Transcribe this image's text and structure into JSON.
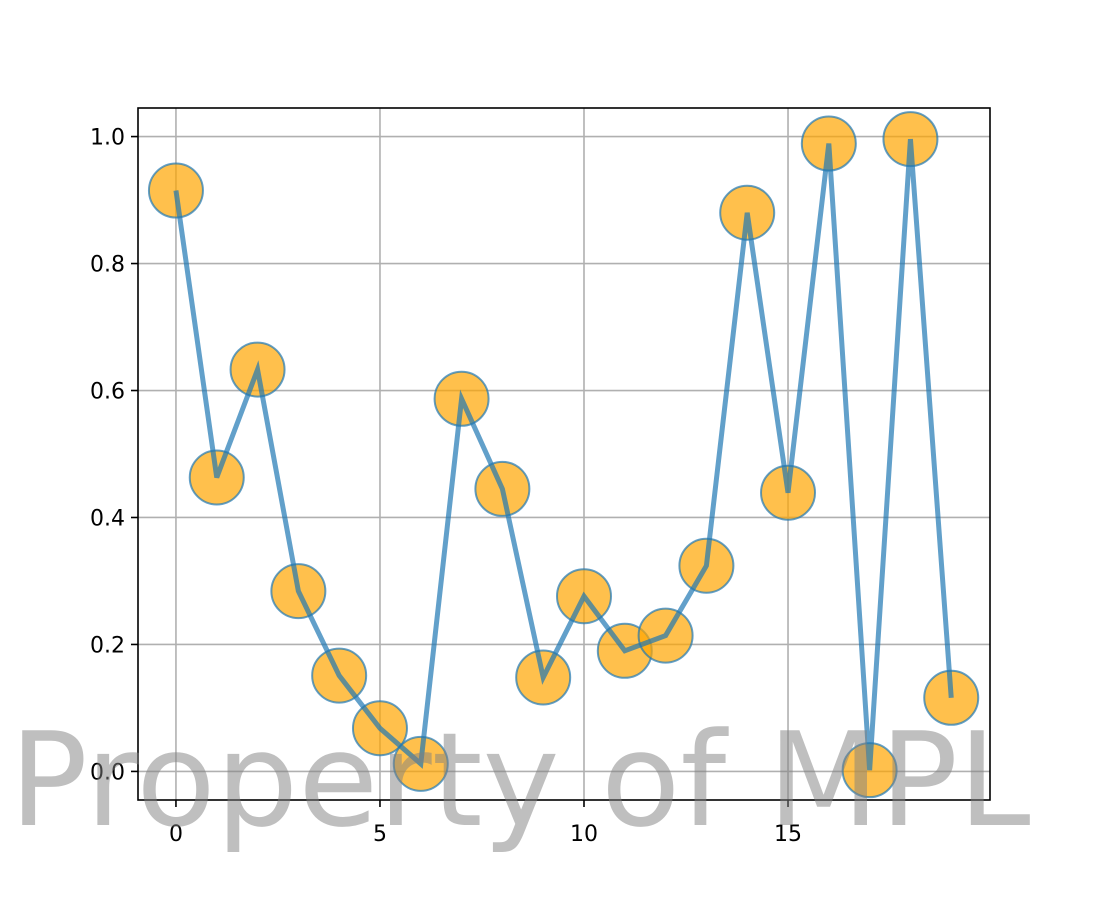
{
  "chart_data": {
    "type": "line",
    "title": "",
    "xlabel": "",
    "ylabel": "",
    "x": [
      0,
      1,
      2,
      3,
      4,
      5,
      6,
      7,
      8,
      9,
      10,
      11,
      12,
      13,
      14,
      15,
      16,
      17,
      18,
      19
    ],
    "series": [
      {
        "values": [
          0.915,
          0.463,
          0.633,
          0.284,
          0.151,
          0.068,
          0.012,
          0.587,
          0.445,
          0.148,
          0.276,
          0.19,
          0.214,
          0.324,
          0.88,
          0.439,
          0.989,
          0.002,
          0.996,
          0.116
        ],
        "line_color": "#1f77b4",
        "marker_color": "#ffa500",
        "marker_edge_color": "#1f77b4"
      }
    ],
    "xlim": [
      -0.93,
      19.95
    ],
    "ylim": [
      -0.045,
      1.045
    ],
    "xticks": [
      "0",
      "5",
      "10",
      "15"
    ],
    "yticks": [
      "0.0",
      "0.2",
      "0.4",
      "0.6",
      "0.8",
      "1.0"
    ],
    "grid": true,
    "watermark": "Property of MPL"
  }
}
